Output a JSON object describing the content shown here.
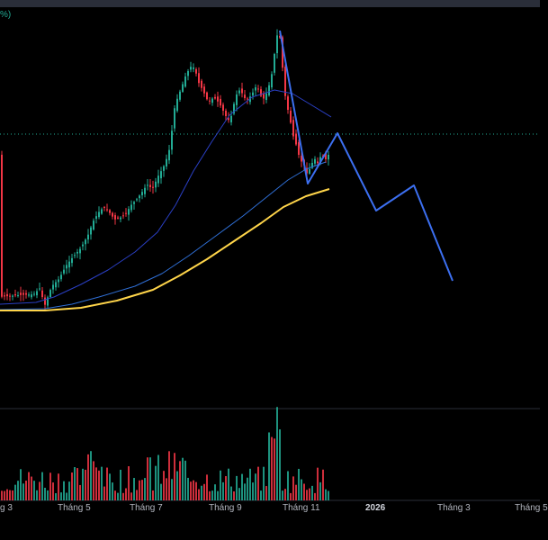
{
  "corner_text": "%)",
  "colors": {
    "background": "#000000",
    "up": "#22ab94",
    "down": "#f23645",
    "ema_fast": "#2a3fc4",
    "ema_mid": "#2f6fd6",
    "ema_slow": "#ffd54a",
    "forecast": "#3c6ff0",
    "price_line": "#22ab94",
    "separator": "#2a2e39"
  },
  "x_axis": {
    "ticks": [
      {
        "label": "g 3",
        "bold": false
      },
      {
        "label": "Tháng 5",
        "bold": false
      },
      {
        "label": "Tháng 7",
        "bold": false
      },
      {
        "label": "Tháng 9",
        "bold": false
      },
      {
        "label": "Tháng 11",
        "bold": false
      },
      {
        "label": "2026",
        "bold": true
      },
      {
        "label": "Tháng 3",
        "bold": false
      },
      {
        "label": "Tháng 5",
        "bold": false
      }
    ]
  },
  "chart_data": {
    "type": "candlestick",
    "series": [
      {
        "kind": "price",
        "style": "candles"
      },
      {
        "kind": "moving_average_fast",
        "style": "line"
      },
      {
        "kind": "moving_average_mid",
        "style": "line"
      },
      {
        "kind": "moving_average_slow",
        "style": "line"
      },
      {
        "kind": "forecast_path",
        "style": "line"
      },
      {
        "kind": "volume",
        "style": "bars"
      }
    ],
    "forecast_points": [
      {
        "date": "2025-10-03",
        "value": 100
      },
      {
        "date": "2025-11-20",
        "value": 59
      },
      {
        "date": "2025-12-03",
        "value": 73
      },
      {
        "date": "2025-12-27",
        "value": 45
      },
      {
        "date": "2026-01-14",
        "value": 50
      },
      {
        "date": "2026-02-27",
        "value": 19
      }
    ],
    "grid": false,
    "legend": "none"
  }
}
